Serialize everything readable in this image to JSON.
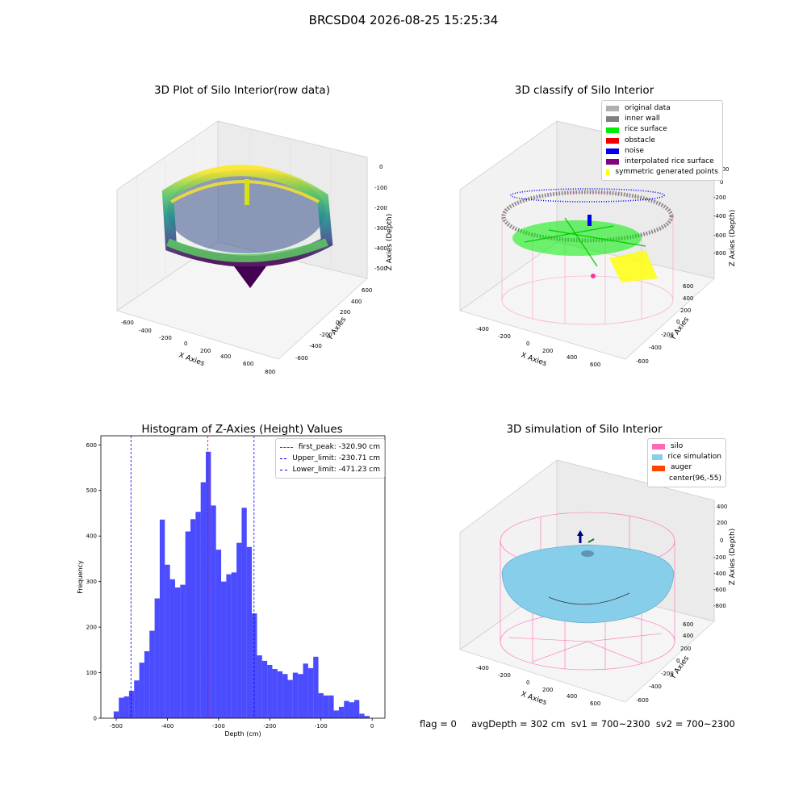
{
  "figure_title": "BRCSD04 2026-08-25 15:25:34",
  "panels": {
    "raw": {
      "title": "3D Plot of Silo Interior(row data)",
      "xlabel": "X Axies",
      "ylabel": "Y Axies",
      "zlabel": "Z Axies (Depth)",
      "xticks": [
        "-600",
        "-400",
        "-200",
        "0",
        "200",
        "400",
        "600",
        "800"
      ],
      "yticks": [
        "-600",
        "-400",
        "-200",
        "0",
        "200",
        "400",
        "600"
      ],
      "zticks": [
        "0",
        "-100",
        "-200",
        "-300",
        "-400",
        "-500"
      ]
    },
    "classify": {
      "title": "3D classify of Silo Interior",
      "xlabel": "X Axies",
      "ylabel": "Y Axies",
      "zlabel": "Z Axies (Depth)",
      "xticks": [
        "-400",
        "-200",
        "0",
        "200",
        "400",
        "600"
      ],
      "yticks": [
        "-600",
        "-400",
        "-200",
        "0",
        "200",
        "400",
        "600"
      ],
      "zticks": [
        "200",
        "0",
        "-200",
        "-400",
        "-600",
        "-800"
      ],
      "legend": [
        {
          "label": "original data",
          "color": "#b0b0b0"
        },
        {
          "label": "inner wall",
          "color": "#808080"
        },
        {
          "label": "rice surface",
          "color": "#00ee00"
        },
        {
          "label": "obstacle",
          "color": "#ee0000"
        },
        {
          "label": "noise",
          "color": "#0000ee"
        },
        {
          "label": "interpolated rice surface",
          "color": "#800080"
        },
        {
          "label": "symmetric generated points",
          "color": "#ffff00"
        }
      ]
    },
    "simulation": {
      "title": "3D simulation of Silo Interior",
      "xlabel": "X Axies",
      "ylabel": "Y Axies",
      "zlabel": "Z Axies (Depth)",
      "xticks": [
        "-400",
        "-200",
        "0",
        "200",
        "400",
        "600"
      ],
      "yticks": [
        "-600",
        "-400",
        "-200",
        "0",
        "200",
        "400",
        "600"
      ],
      "zticks": [
        "400",
        "200",
        "0",
        "-200",
        "-400",
        "-600",
        "-800"
      ],
      "legend": [
        {
          "label": "silo",
          "color": "#ff69b4"
        },
        {
          "label": "rice simulation",
          "color": "#87ceeb"
        },
        {
          "label": "auger",
          "color": "#ff4500"
        },
        {
          "label": "center(96,-55)",
          "color": "#ffffff"
        }
      ]
    }
  },
  "chart_data": {
    "type": "bar",
    "title": "Histogram of Z-Axies (Height) Values",
    "xlabel": "Depth (cm)",
    "ylabel": "Frequency",
    "xlim": [
      -530,
      25
    ],
    "ylim": [
      0,
      620
    ],
    "xticks": [
      -500,
      -400,
      -300,
      -200,
      -100,
      0
    ],
    "yticks": [
      0,
      100,
      200,
      300,
      400,
      500,
      600
    ],
    "bin_start": -505,
    "bin_width": 10,
    "values": [
      15,
      45,
      48,
      60,
      83,
      122,
      147,
      192,
      263,
      436,
      337,
      305,
      287,
      293,
      410,
      437,
      453,
      518,
      585,
      467,
      370,
      300,
      316,
      320,
      385,
      462,
      376,
      230,
      138,
      126,
      117,
      108,
      103,
      97,
      84,
      100,
      97,
      120,
      110,
      135,
      55,
      50,
      50,
      17,
      25,
      38,
      35,
      40,
      10,
      5
    ],
    "bar_color": "#0000ff",
    "vlines": [
      {
        "label": "first_peak: -320.90 cm",
        "value": -320.9,
        "color": "#ff0000"
      },
      {
        "label": "Upper_limit: -230.71 cm",
        "value": -230.71,
        "color": "#0000ff"
      },
      {
        "label": "Lower_limit: -471.23 cm",
        "value": -471.23,
        "color": "#0000ff"
      }
    ],
    "legend_position": "top-right"
  },
  "footer": {
    "text": "flag = 0     avgDepth = 302 cm  sv1 = 700~2300  sv2 = 700~2300"
  }
}
